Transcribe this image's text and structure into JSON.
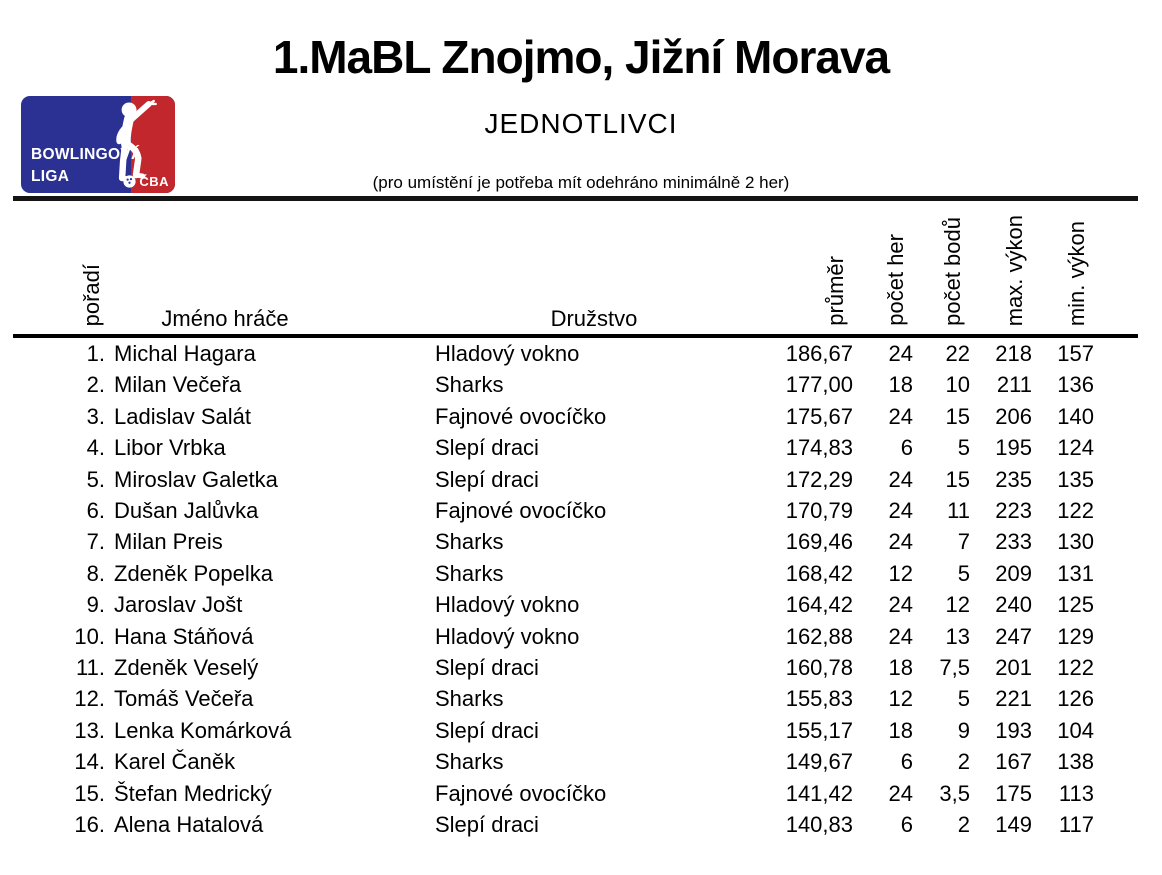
{
  "header": {
    "title": "1.MaBL Znojmo, Jižní Morava",
    "subtitle": "JEDNOTLIVCI",
    "note": "(pro umístění je potřeba mít odehráno minimálně 2 her)"
  },
  "logo": {
    "line1": "BOWLINGOVÁ",
    "line2": "LIGA",
    "badge": "ČBA",
    "colors": {
      "blue": "#2b3193",
      "red": "#c1272d",
      "white": "#ffffff"
    },
    "icons": [
      "bowler-icon",
      "bowling-ball-icon"
    ]
  },
  "table": {
    "columns": [
      "pořadí",
      "Jméno hráče",
      "Družstvo",
      "průměr",
      "počet her",
      "počet bodů",
      "max. výkon",
      "min. výkon"
    ],
    "rows": [
      {
        "rank": "1.",
        "name": "Michal Hagara",
        "team": "Hladový vokno",
        "avg": "186,67",
        "games": "24",
        "points": "22",
        "max": "218",
        "min": "157"
      },
      {
        "rank": "2.",
        "name": "Milan Večeřa",
        "team": "Sharks",
        "avg": "177,00",
        "games": "18",
        "points": "10",
        "max": "211",
        "min": "136"
      },
      {
        "rank": "3.",
        "name": "Ladislav Salát",
        "team": "Fajnové ovocíčko",
        "avg": "175,67",
        "games": "24",
        "points": "15",
        "max": "206",
        "min": "140"
      },
      {
        "rank": "4.",
        "name": "Libor Vrbka",
        "team": "Slepí draci",
        "avg": "174,83",
        "games": "6",
        "points": "5",
        "max": "195",
        "min": "124"
      },
      {
        "rank": "5.",
        "name": "Miroslav Galetka",
        "team": "Slepí draci",
        "avg": "172,29",
        "games": "24",
        "points": "15",
        "max": "235",
        "min": "135"
      },
      {
        "rank": "6.",
        "name": "Dušan Jalůvka",
        "team": "Fajnové ovocíčko",
        "avg": "170,79",
        "games": "24",
        "points": "11",
        "max": "223",
        "min": "122"
      },
      {
        "rank": "7.",
        "name": "Milan Preis",
        "team": "Sharks",
        "avg": "169,46",
        "games": "24",
        "points": "7",
        "max": "233",
        "min": "130"
      },
      {
        "rank": "8.",
        "name": "Zdeněk Popelka",
        "team": "Sharks",
        "avg": "168,42",
        "games": "12",
        "points": "5",
        "max": "209",
        "min": "131"
      },
      {
        "rank": "9.",
        "name": "Jaroslav Jošt",
        "team": "Hladový vokno",
        "avg": "164,42",
        "games": "24",
        "points": "12",
        "max": "240",
        "min": "125"
      },
      {
        "rank": "10.",
        "name": "Hana Stáňová",
        "team": "Hladový vokno",
        "avg": "162,88",
        "games": "24",
        "points": "13",
        "max": "247",
        "min": "129"
      },
      {
        "rank": "11.",
        "name": "Zdeněk Veselý",
        "team": "Slepí draci",
        "avg": "160,78",
        "games": "18",
        "points": "7,5",
        "max": "201",
        "min": "122"
      },
      {
        "rank": "12.",
        "name": "Tomáš Večeřa",
        "team": "Sharks",
        "avg": "155,83",
        "games": "12",
        "points": "5",
        "max": "221",
        "min": "126"
      },
      {
        "rank": "13.",
        "name": "Lenka Komárková",
        "team": "Slepí draci",
        "avg": "155,17",
        "games": "18",
        "points": "9",
        "max": "193",
        "min": "104"
      },
      {
        "rank": "14.",
        "name": "Karel Čaněk",
        "team": "Sharks",
        "avg": "149,67",
        "games": "6",
        "points": "2",
        "max": "167",
        "min": "138"
      },
      {
        "rank": "15.",
        "name": "Štefan Medrický",
        "team": "Fajnové ovocíčko",
        "avg": "141,42",
        "games": "24",
        "points": "3,5",
        "max": "175",
        "min": "113"
      },
      {
        "rank": "16.",
        "name": "Alena Hatalová",
        "team": "Slepí draci",
        "avg": "140,83",
        "games": "6",
        "points": "2",
        "max": "149",
        "min": "117"
      }
    ]
  }
}
